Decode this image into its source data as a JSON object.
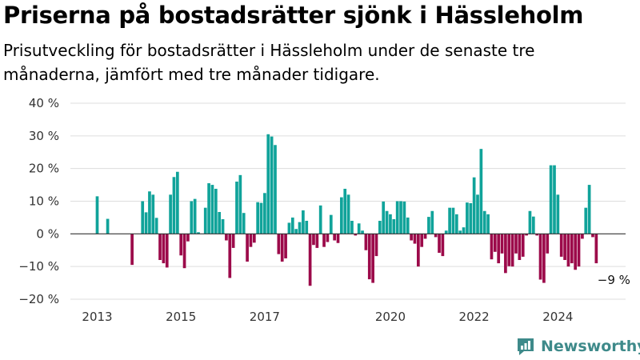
{
  "title": "Priserna på bostadsrätter sjönk i Hässleholm",
  "subtitle": "Prisutveckling för bostadsrätter i Hässleholm under de senaste tre månaderna, jämfört med tre månader tidigare.",
  "brand": "Newsworthy",
  "colors": {
    "positive": "#10a39a",
    "negative": "#9c0a4a",
    "grid": "#dddddd",
    "logo": "#3e8a8a"
  },
  "chart_data": {
    "type": "bar",
    "title": "Priserna på bostadsrätter sjönk i Hässleholm",
    "ylim": [
      -20,
      40
    ],
    "yticks": [
      40,
      30,
      20,
      10,
      0,
      -10,
      -20
    ],
    "ytick_labels": [
      "40 %",
      "30 %",
      "20 %",
      "10 %",
      "0 %",
      "−10 %",
      "−20 %"
    ],
    "xticks": [
      "2013",
      "2015",
      "2017",
      "2020",
      "2022",
      "2024"
    ],
    "grid": true,
    "annotation": "−9 %",
    "series": [
      {
        "values": [
          {
            "x": "2013-01",
            "y": 11.5
          },
          {
            "x": "2013-02",
            "y": null
          },
          {
            "x": "2013-03",
            "y": null
          },
          {
            "x": "2013-04",
            "y": 4.6
          },
          {
            "x": "2013-05",
            "y": null
          },
          {
            "x": "2013-06",
            "y": null
          },
          {
            "x": "2013-07",
            "y": null
          },
          {
            "x": "2013-08",
            "y": null
          },
          {
            "x": "2013-09",
            "y": null
          },
          {
            "x": "2013-10",
            "y": null
          },
          {
            "x": "2013-11",
            "y": -9.5
          },
          {
            "x": "2013-12",
            "y": null
          },
          {
            "x": "2014-01",
            "y": null
          },
          {
            "x": "2014-02",
            "y": 10.0
          },
          {
            "x": "2014-03",
            "y": 6.6
          },
          {
            "x": "2014-04",
            "y": 13.0
          },
          {
            "x": "2014-05",
            "y": 12.0
          },
          {
            "x": "2014-06",
            "y": 4.9
          },
          {
            "x": "2014-07",
            "y": -8.0
          },
          {
            "x": "2014-08",
            "y": -9.0
          },
          {
            "x": "2014-09",
            "y": -10.3
          },
          {
            "x": "2014-10",
            "y": 12.0
          },
          {
            "x": "2014-11",
            "y": 17.4
          },
          {
            "x": "2014-12",
            "y": 19.0
          },
          {
            "x": "2015-01",
            "y": -6.6
          },
          {
            "x": "2015-02",
            "y": -10.5
          },
          {
            "x": "2015-03",
            "y": -2.3
          },
          {
            "x": "2015-04",
            "y": 10.0
          },
          {
            "x": "2015-05",
            "y": 10.7
          },
          {
            "x": "2015-06",
            "y": 0.5
          },
          {
            "x": "2015-07",
            "y": null
          },
          {
            "x": "2015-08",
            "y": 8.0
          },
          {
            "x": "2015-09",
            "y": 15.5
          },
          {
            "x": "2015-10",
            "y": 15.0
          },
          {
            "x": "2015-11",
            "y": 13.8
          },
          {
            "x": "2015-12",
            "y": 6.7
          },
          {
            "x": "2016-01",
            "y": 4.5
          },
          {
            "x": "2016-02",
            "y": -2.0
          },
          {
            "x": "2016-03",
            "y": -13.5
          },
          {
            "x": "2016-04",
            "y": -4.3
          },
          {
            "x": "2016-05",
            "y": 16.0
          },
          {
            "x": "2016-06",
            "y": 18.0
          },
          {
            "x": "2016-07",
            "y": 6.4
          },
          {
            "x": "2016-08",
            "y": -8.5
          },
          {
            "x": "2016-09",
            "y": -4.0
          },
          {
            "x": "2016-10",
            "y": -2.7
          },
          {
            "x": "2016-11",
            "y": 9.7
          },
          {
            "x": "2016-12",
            "y": 9.5
          },
          {
            "x": "2017-01",
            "y": 12.5
          },
          {
            "x": "2017-02",
            "y": 30.5
          },
          {
            "x": "2017-03",
            "y": 29.8
          },
          {
            "x": "2017-04",
            "y": 27.2
          },
          {
            "x": "2017-05",
            "y": -6.2
          },
          {
            "x": "2017-06",
            "y": -8.5
          },
          {
            "x": "2017-07",
            "y": -7.5
          },
          {
            "x": "2017-08",
            "y": 3.4
          },
          {
            "x": "2017-09",
            "y": 5.0
          },
          {
            "x": "2017-10",
            "y": 1.5
          },
          {
            "x": "2017-11",
            "y": 3.6
          },
          {
            "x": "2017-12",
            "y": 7.2
          },
          {
            "x": "2018-01",
            "y": 4.0
          },
          {
            "x": "2018-02",
            "y": -15.9
          },
          {
            "x": "2018-03",
            "y": -3.4
          },
          {
            "x": "2018-04",
            "y": -4.3
          },
          {
            "x": "2018-05",
            "y": 8.7
          },
          {
            "x": "2018-06",
            "y": -4.0
          },
          {
            "x": "2018-07",
            "y": -2.5
          },
          {
            "x": "2018-08",
            "y": 5.8
          },
          {
            "x": "2018-09",
            "y": -2.0
          },
          {
            "x": "2018-10",
            "y": -2.8
          },
          {
            "x": "2018-11",
            "y": 11.2
          },
          {
            "x": "2018-12",
            "y": 13.8
          },
          {
            "x": "2019-01",
            "y": 12.0
          },
          {
            "x": "2019-02",
            "y": 4.0
          },
          {
            "x": "2019-03",
            "y": -0.5
          },
          {
            "x": "2019-04",
            "y": 3.2
          },
          {
            "x": "2019-05",
            "y": 1.0
          },
          {
            "x": "2019-06",
            "y": -5.0
          },
          {
            "x": "2019-07",
            "y": -13.9
          },
          {
            "x": "2019-08",
            "y": -15.0
          },
          {
            "x": "2019-09",
            "y": -6.8
          },
          {
            "x": "2019-10",
            "y": 4.0
          },
          {
            "x": "2019-11",
            "y": 9.9
          },
          {
            "x": "2019-12",
            "y": 7.0
          },
          {
            "x": "2020-01",
            "y": 6.0
          },
          {
            "x": "2020-02",
            "y": 4.5
          },
          {
            "x": "2020-03",
            "y": 10.0
          },
          {
            "x": "2020-04",
            "y": 10.0
          },
          {
            "x": "2020-05",
            "y": 9.9
          },
          {
            "x": "2020-06",
            "y": 5.0
          },
          {
            "x": "2020-07",
            "y": -2.0
          },
          {
            "x": "2020-08",
            "y": -3.0
          },
          {
            "x": "2020-09",
            "y": -10.0
          },
          {
            "x": "2020-10",
            "y": -4.0
          },
          {
            "x": "2020-11",
            "y": -1.5
          },
          {
            "x": "2020-12",
            "y": 5.2
          },
          {
            "x": "2021-01",
            "y": 7.0
          },
          {
            "x": "2021-02",
            "y": -1.0
          },
          {
            "x": "2021-03",
            "y": -5.8
          },
          {
            "x": "2021-04",
            "y": -6.8
          },
          {
            "x": "2021-05",
            "y": 1.0
          },
          {
            "x": "2021-06",
            "y": 8.0
          },
          {
            "x": "2021-07",
            "y": 8.0
          },
          {
            "x": "2021-08",
            "y": 6.0
          },
          {
            "x": "2021-09",
            "y": 1.0
          },
          {
            "x": "2021-10",
            "y": 2.0
          },
          {
            "x": "2021-11",
            "y": 9.6
          },
          {
            "x": "2021-12",
            "y": 9.4
          },
          {
            "x": "2022-01",
            "y": 17.3
          },
          {
            "x": "2022-02",
            "y": 12.0
          },
          {
            "x": "2022-03",
            "y": 26.0
          },
          {
            "x": "2022-04",
            "y": 7.0
          },
          {
            "x": "2022-05",
            "y": 6.0
          },
          {
            "x": "2022-06",
            "y": -7.8
          },
          {
            "x": "2022-07",
            "y": -5.5
          },
          {
            "x": "2022-08",
            "y": -9.0
          },
          {
            "x": "2022-09",
            "y": -6.0
          },
          {
            "x": "2022-10",
            "y": -12.0
          },
          {
            "x": "2022-11",
            "y": -9.9
          },
          {
            "x": "2022-12",
            "y": -10.0
          },
          {
            "x": "2023-01",
            "y": -6.0
          },
          {
            "x": "2023-02",
            "y": -8.0
          },
          {
            "x": "2023-03",
            "y": -7.0
          },
          {
            "x": "2023-04",
            "y": -0.5
          },
          {
            "x": "2023-05",
            "y": 7.0
          },
          {
            "x": "2023-06",
            "y": 5.3
          },
          {
            "x": "2023-07",
            "y": -0.5
          },
          {
            "x": "2023-08",
            "y": -14.0
          },
          {
            "x": "2023-09",
            "y": -15.0
          },
          {
            "x": "2023-10",
            "y": -6.0
          },
          {
            "x": "2023-11",
            "y": 21.0
          },
          {
            "x": "2023-12",
            "y": 21.0
          },
          {
            "x": "2024-01",
            "y": 12.0
          },
          {
            "x": "2024-02",
            "y": -7.0
          },
          {
            "x": "2024-03",
            "y": -8.0
          },
          {
            "x": "2024-04",
            "y": -10.0
          },
          {
            "x": "2024-05",
            "y": -9.0
          },
          {
            "x": "2024-06",
            "y": -11.0
          },
          {
            "x": "2024-07",
            "y": -10.0
          },
          {
            "x": "2024-08",
            "y": -1.5
          },
          {
            "x": "2024-09",
            "y": 8.0
          },
          {
            "x": "2024-10",
            "y": 15.0
          },
          {
            "x": "2024-11",
            "y": -1.0
          },
          {
            "x": "2024-12",
            "y": -9.0
          }
        ]
      }
    ]
  }
}
